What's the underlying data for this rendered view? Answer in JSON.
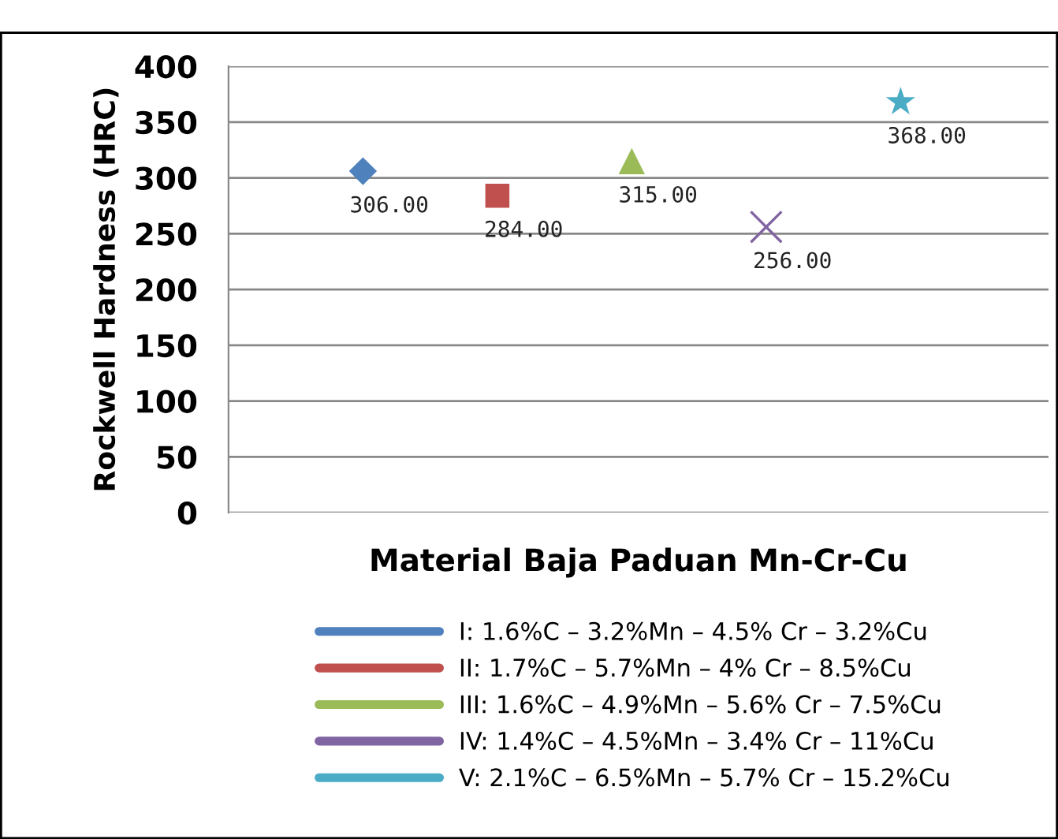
{
  "chart_data": {
    "type": "scatter",
    "xlabel": "Material Baja Paduan Mn-Cr-Cu",
    "ylabel": "Rockwell Hardness (HRC)",
    "categories": [
      null,
      null,
      null,
      null,
      null
    ],
    "ylim": [
      0,
      400
    ],
    "yticks": [
      0,
      50,
      100,
      150,
      200,
      250,
      300,
      350,
      400
    ],
    "grid": "y",
    "legend": "bottom",
    "tick_labels": "y",
    "series": [
      {
        "name": "I: 1.6%C – 3.2%Mn – 4.5% Cr – 3.2%Cu",
        "color": "#4f81bd",
        "marker": "diamond",
        "values": [
          306,
          null,
          null,
          null,
          null
        ],
        "value_labels": [
          "306.00",
          null,
          null,
          null,
          null
        ]
      },
      {
        "name": "II: 1.7%C – 5.7%Mn – 4% Cr – 8.5%Cu",
        "color": "#c0504d",
        "marker": "square",
        "values": [
          null,
          284,
          null,
          null,
          null
        ],
        "value_labels": [
          null,
          "284.00",
          null,
          null,
          null
        ]
      },
      {
        "name": "III: 1.6%C – 4.9%Mn – 5.6% Cr – 7.5%Cu",
        "color": "#9bbb59",
        "marker": "triangle",
        "values": [
          null,
          null,
          315,
          null,
          null
        ],
        "value_labels": [
          null,
          null,
          "315.00",
          null,
          null
        ]
      },
      {
        "name": "IV: 1.4%C – 4.5%Mn – 3.4% Cr – 11%Cu",
        "color": "#8064a2",
        "marker": "cross",
        "values": [
          null,
          null,
          null,
          256,
          null
        ],
        "value_labels": [
          null,
          null,
          null,
          "256.00",
          null
        ]
      },
      {
        "name": "V: 2.1%C – 6.5%Mn – 5.7% Cr – 15.2%Cu",
        "color": "#4bacc6",
        "marker": "star",
        "values": [
          null,
          null,
          null,
          null,
          368
        ],
        "value_labels": [
          null,
          null,
          null,
          null,
          "368.00"
        ]
      }
    ]
  }
}
